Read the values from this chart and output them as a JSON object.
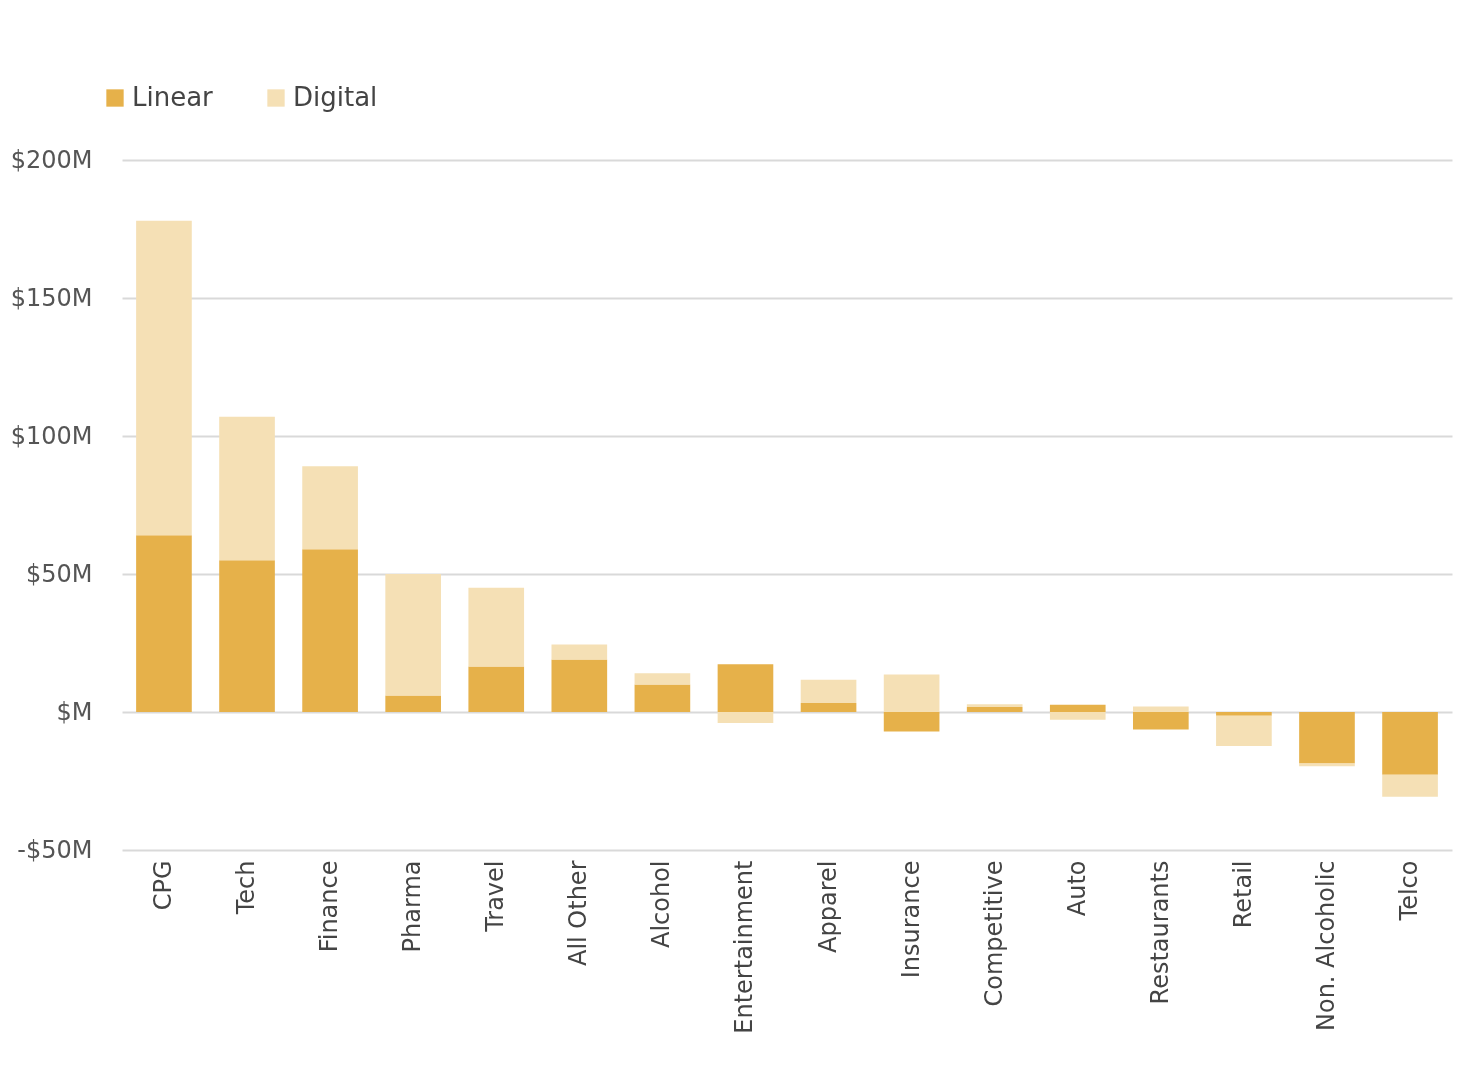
{
  "chart_data": {
    "type": "bar",
    "stacked": true,
    "categories": [
      "CPG",
      "Tech",
      "Finance",
      "Pharma",
      "Travel",
      "All Other",
      "Alcohol",
      "Entertainment",
      "Apparel",
      "Insurance",
      "Competitive",
      "Auto",
      "Restaurants",
      "Retail",
      "Non. Alcoholic",
      "Telco"
    ],
    "series": [
      {
        "name": "Linear",
        "color": "#e6b14a",
        "values": [
          64,
          55,
          59,
          6,
          16.5,
          19,
          10,
          17.3,
          3.3,
          -7.1,
          1.8,
          2.6,
          -6.3,
          -1.4,
          -18.7,
          -22.7
        ]
      },
      {
        "name": "Digital",
        "color": "#f5e0b5",
        "values": [
          114,
          52,
          30,
          44,
          28.5,
          5.5,
          4,
          -4,
          8.4,
          13.6,
          1,
          -2.8,
          2,
          -10.9,
          -1,
          -8
        ]
      }
    ],
    "ylim": [
      -50,
      200
    ],
    "yticks": [
      {
        "value": -50,
        "label": "-$50M"
      },
      {
        "value": 0,
        "label": "$M"
      },
      {
        "value": 50,
        "label": "$50M"
      },
      {
        "value": 100,
        "label": "$100M"
      },
      {
        "value": 150,
        "label": "$150M"
      },
      {
        "value": 200,
        "label": "$200M"
      }
    ],
    "grid": "y",
    "legend": "top left"
  }
}
